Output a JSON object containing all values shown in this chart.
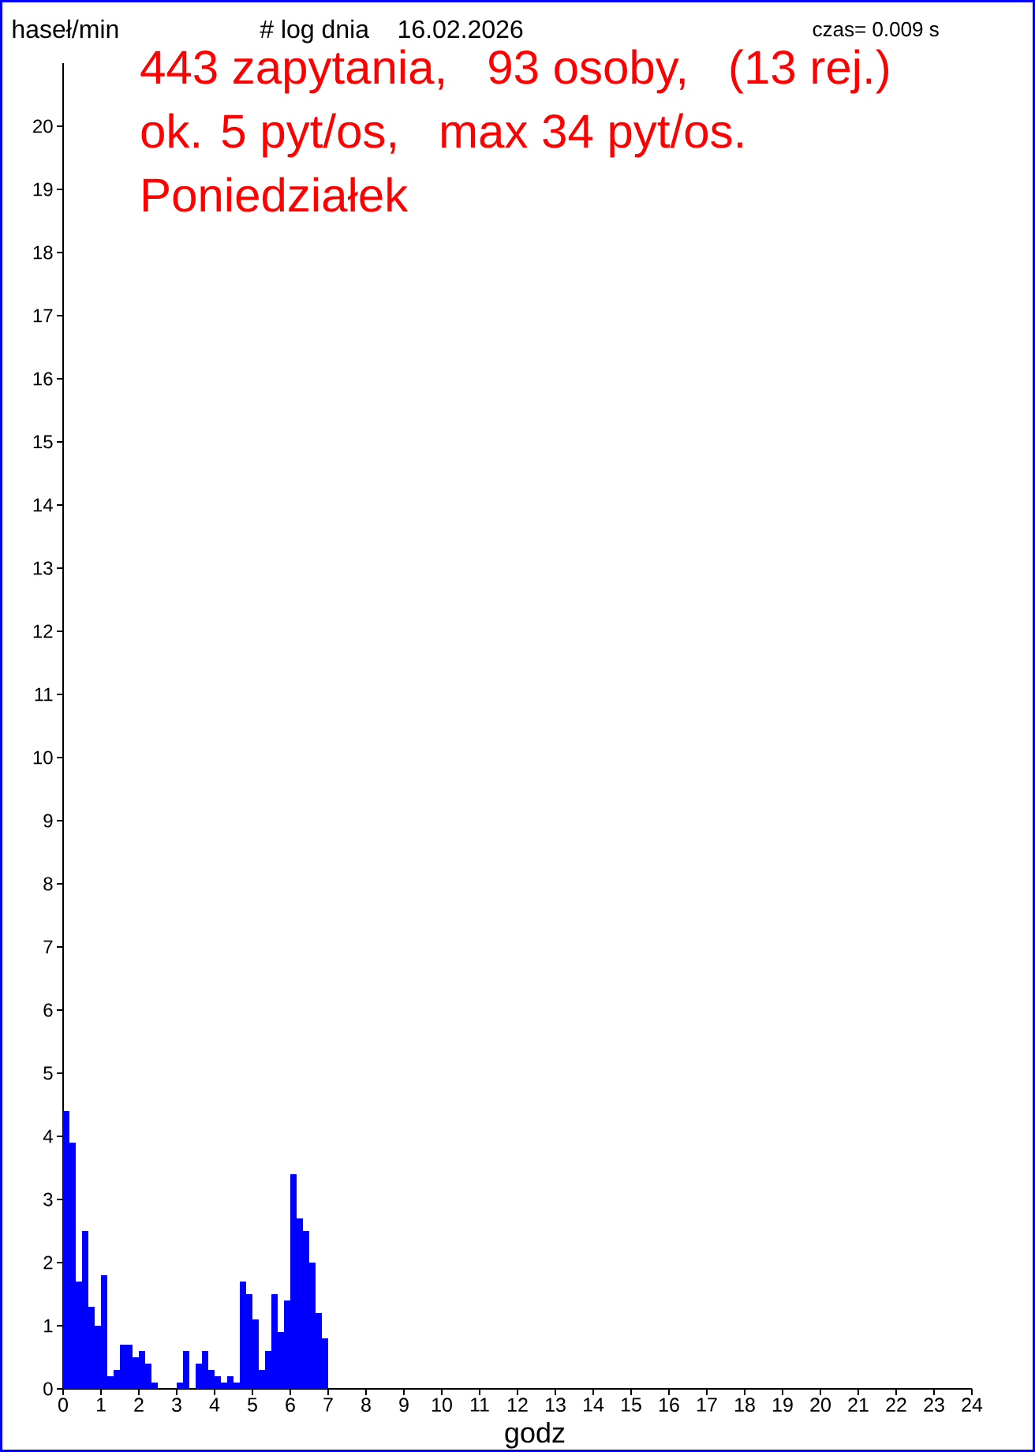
{
  "chart_data": {
    "type": "histogram",
    "title": "# log dnia    16.02.2026",
    "ylabel": "haseł/min",
    "xlabel": "godz",
    "annotations": [
      "czas= 0.009 s",
      "443 zapytania,   93 osoby,   (13 rej.)",
      "ok. 5 pyt/os,   max 34 pyt/os.",
      "Poniedziałek"
    ],
    "bins": [
      0,
      0.1667,
      0.3333,
      0.5,
      0.6667,
      0.8333,
      1,
      1.1667,
      1.3333,
      1.5,
      1.6667,
      1.8333,
      2,
      2.1667,
      2.3333,
      2.5,
      2.6667,
      2.8333,
      3,
      3.1667,
      3.3333,
      3.5,
      3.6667,
      3.8333,
      4,
      4.1667,
      4.3333,
      4.5,
      4.6667,
      4.8333,
      5,
      5.1667,
      5.3333,
      5.5,
      5.6667,
      5.8333,
      6,
      6.1667,
      6.3333,
      6.5,
      6.6667,
      6.8333,
      7
    ],
    "values": [
      4.4,
      3.9,
      1.7,
      2.5,
      1.3,
      1.0,
      1.8,
      0.2,
      0.3,
      0.7,
      0.7,
      0.5,
      0.6,
      0.4,
      0.1,
      0,
      0,
      0,
      0.1,
      0.6,
      0,
      0.4,
      0.6,
      0.3,
      0.2,
      0.1,
      0.2,
      0.1,
      1.7,
      1.5,
      1.1,
      0.3,
      0.6,
      1.5,
      0.9,
      1.4,
      3.4,
      2.7,
      2.5,
      2.0,
      1.2,
      0.8
    ],
    "color": "#0000ff",
    "xlim": [
      0,
      24
    ],
    "ylim": [
      0,
      21
    ],
    "xticks": [
      0,
      1,
      2,
      3,
      4,
      5,
      6,
      7,
      8,
      9,
      10,
      11,
      12,
      13,
      14,
      15,
      16,
      17,
      18,
      19,
      20,
      21,
      22,
      23,
      24
    ],
    "yticks": [
      0,
      1,
      2,
      3,
      4,
      5,
      6,
      7,
      8,
      9,
      10,
      11,
      12,
      13,
      14,
      15,
      16,
      17,
      18,
      19,
      20
    ]
  }
}
